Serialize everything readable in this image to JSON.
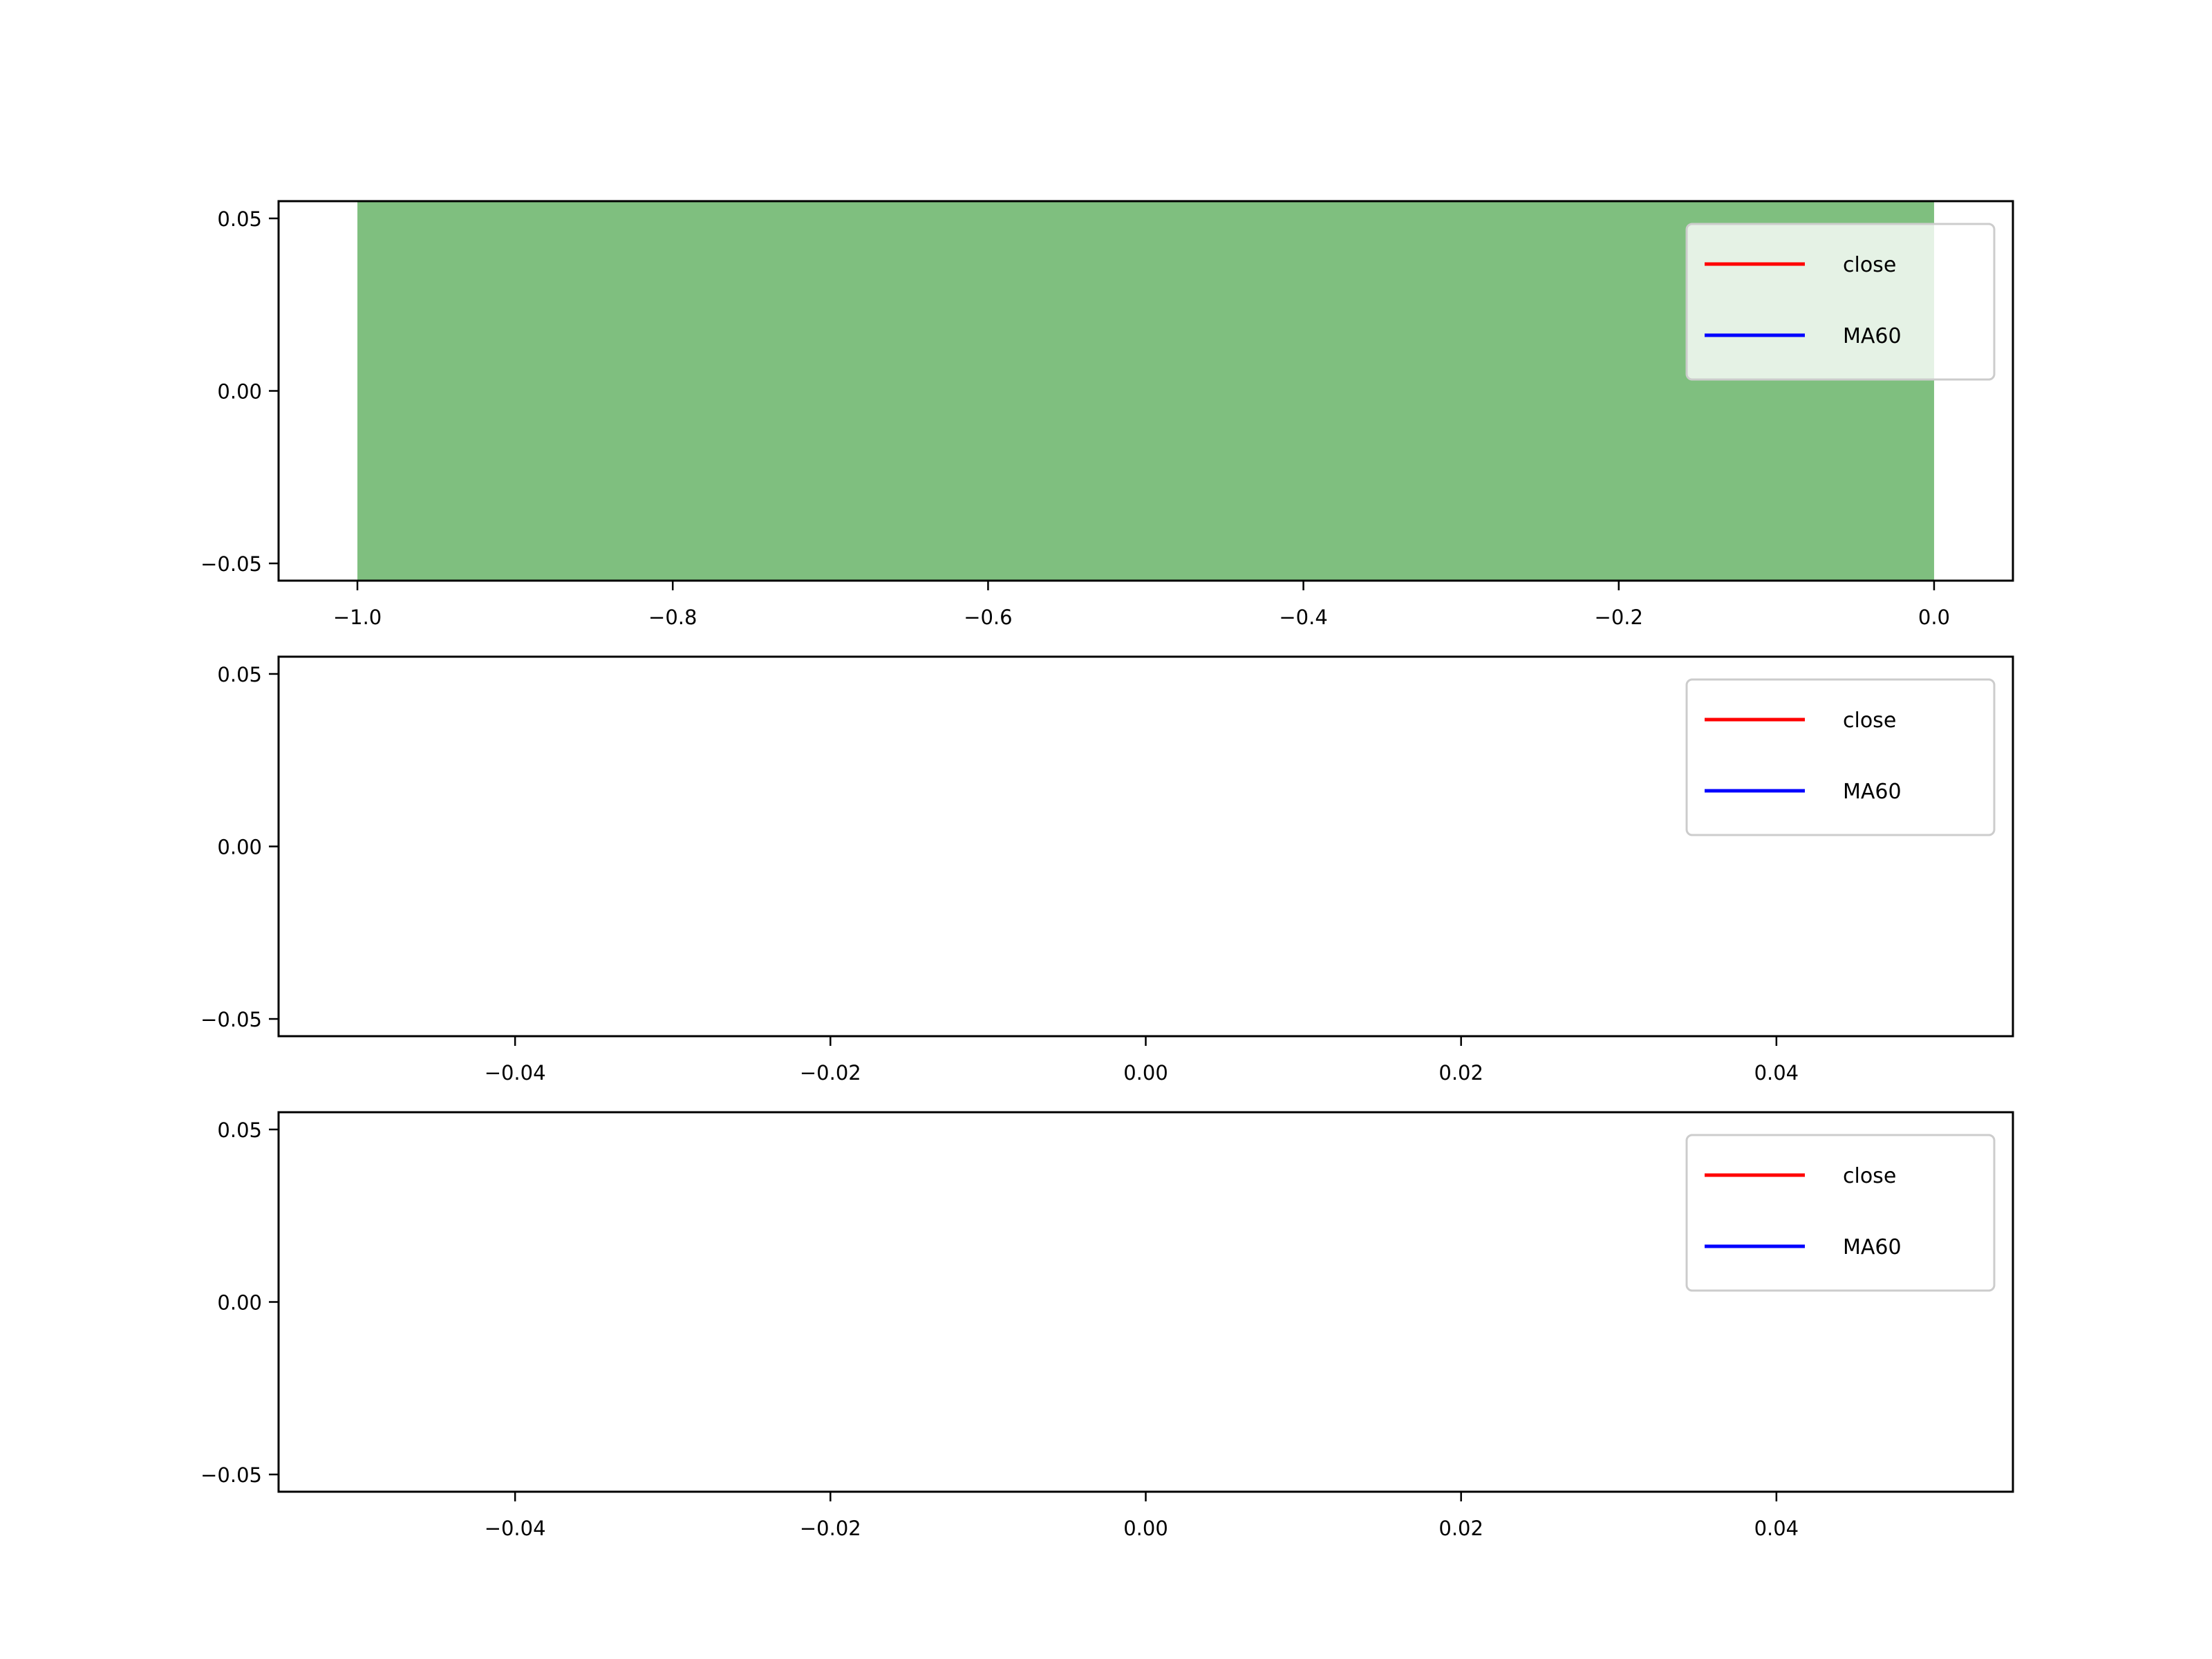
{
  "colors": {
    "close": "#ff0000",
    "ma60": "#0000ff",
    "fill": "#80c080",
    "frame": "#000000",
    "legend_border": "#cccccc"
  },
  "chart_data": [
    {
      "type": "line",
      "fill_between": {
        "x": [
          -1.0,
          0.0
        ],
        "color": "#008000",
        "alpha": 0.5,
        "covers_full_y": true
      },
      "series": [
        {
          "name": "close",
          "color": "#ff0000",
          "x": [],
          "y": []
        },
        {
          "name": "MA60",
          "color": "#0000ff",
          "x": [],
          "y": []
        }
      ],
      "xlim": [
        -1.05,
        0.05
      ],
      "ylim": [
        -0.055,
        0.055
      ],
      "xticks": [
        -1.0,
        -0.8,
        -0.6,
        -0.4,
        -0.2,
        0.0
      ],
      "xtick_labels": [
        "−1.0",
        "−0.8",
        "−0.6",
        "−0.4",
        "−0.2",
        "0.0"
      ],
      "yticks": [
        0.05,
        0.0,
        -0.05
      ],
      "ytick_labels": [
        "0.05",
        "0.00",
        "−0.05"
      ],
      "legend": {
        "entries": [
          "close",
          "MA60"
        ],
        "placement": "upper right"
      },
      "grid": false
    },
    {
      "type": "line",
      "series": [
        {
          "name": "close",
          "color": "#ff0000",
          "x": [],
          "y": []
        },
        {
          "name": "MA60",
          "color": "#0000ff",
          "x": [],
          "y": []
        }
      ],
      "xlim": [
        -0.055,
        0.055
      ],
      "ylim": [
        -0.055,
        0.055
      ],
      "xticks": [
        -0.04,
        -0.02,
        0.0,
        0.02,
        0.04
      ],
      "xtick_labels": [
        "−0.04",
        "−0.02",
        "0.00",
        "0.02",
        "0.04"
      ],
      "yticks": [
        0.05,
        0.0,
        -0.05
      ],
      "ytick_labels": [
        "0.05",
        "0.00",
        "−0.05"
      ],
      "legend": {
        "entries": [
          "close",
          "MA60"
        ],
        "placement": "upper right"
      },
      "grid": false
    },
    {
      "type": "line",
      "series": [
        {
          "name": "close",
          "color": "#ff0000",
          "x": [],
          "y": []
        },
        {
          "name": "MA60",
          "color": "#0000ff",
          "x": [],
          "y": []
        }
      ],
      "xlim": [
        -0.055,
        0.055
      ],
      "ylim": [
        -0.055,
        0.055
      ],
      "xticks": [
        -0.04,
        -0.02,
        0.0,
        0.02,
        0.04
      ],
      "xtick_labels": [
        "−0.04",
        "−0.02",
        "0.00",
        "0.02",
        "0.04"
      ],
      "yticks": [
        0.05,
        0.0,
        -0.05
      ],
      "ytick_labels": [
        "0.05",
        "0.00",
        "−0.05"
      ],
      "legend": {
        "entries": [
          "close",
          "MA60"
        ],
        "placement": "upper right"
      },
      "grid": false
    }
  ]
}
